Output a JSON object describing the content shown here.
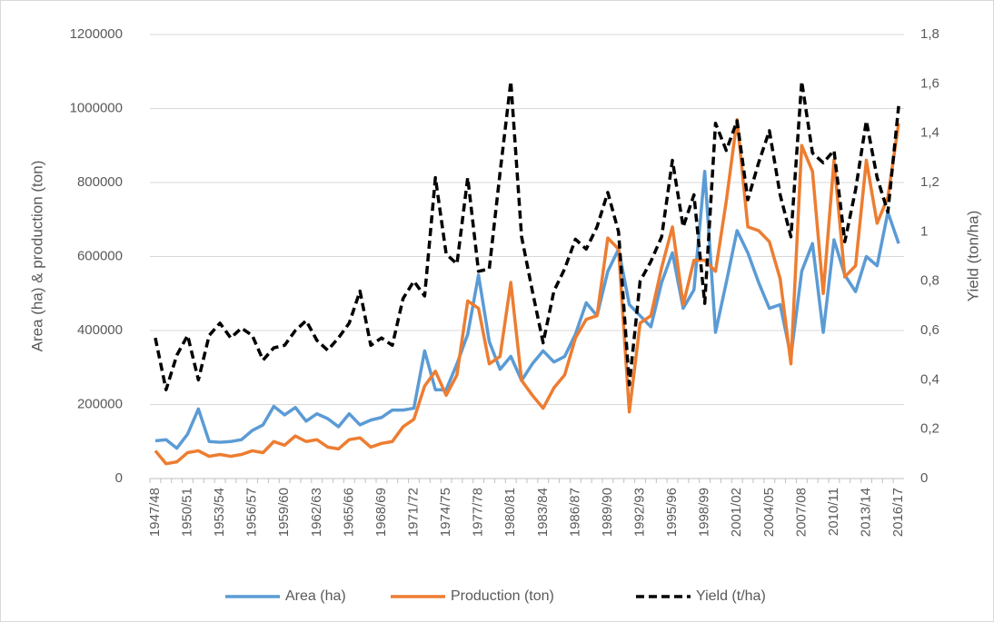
{
  "chart_data": {
    "type": "line",
    "y_label": "Area (ha) & production (ton)",
    "y2_label": "Yield (ton/ha)",
    "categories": [
      "1947/48",
      null,
      null,
      "1950/51",
      null,
      null,
      "1953/54",
      null,
      null,
      "1956/57",
      null,
      null,
      "1959/60",
      null,
      null,
      "1962/63",
      null,
      null,
      "1965/66",
      null,
      null,
      "1968/69",
      null,
      null,
      "1971/72",
      null,
      null,
      "1974/75",
      null,
      null,
      "1977/78",
      null,
      null,
      "1980/81",
      null,
      null,
      "1983/84",
      null,
      null,
      "1986/87",
      null,
      null,
      "1989/90",
      null,
      null,
      "1992/93",
      null,
      null,
      "1995/96",
      null,
      null,
      "1998/99",
      null,
      null,
      "2001/02",
      null,
      null,
      "2004/05",
      null,
      null,
      "2007/08",
      null,
      null,
      "2010/11",
      null,
      null,
      "2013/14",
      null,
      null,
      "2016/17"
    ],
    "series": [
      {
        "name": "Area (ha)",
        "color": "#5b9bd5",
        "dash": false,
        "axis": "y",
        "values": [
          102000,
          105000,
          82000,
          120000,
          188000,
          100000,
          98000,
          100000,
          105000,
          130000,
          145000,
          195000,
          172000,
          192000,
          155000,
          175000,
          162000,
          140000,
          175000,
          145000,
          158000,
          165000,
          185000,
          185000,
          190000,
          345000,
          240000,
          240000,
          310000,
          390000,
          550000,
          370000,
          295000,
          330000,
          265000,
          310000,
          345000,
          315000,
          330000,
          390000,
          475000,
          440000,
          560000,
          620000,
          470000,
          440000,
          410000,
          530000,
          610000,
          460000,
          510000,
          830000,
          395000,
          530000,
          670000,
          610000,
          530000,
          460000,
          470000,
          330000,
          560000,
          635000,
          395000,
          645000,
          550000,
          505000,
          600000,
          575000,
          720000,
          635000
        ]
      },
      {
        "name": "Production (ton)",
        "color": "#ed7d31",
        "dash": false,
        "axis": "y",
        "values": [
          75000,
          40000,
          45000,
          70000,
          75000,
          60000,
          65000,
          60000,
          65000,
          75000,
          70000,
          100000,
          90000,
          115000,
          100000,
          105000,
          85000,
          80000,
          105000,
          110000,
          85000,
          95000,
          100000,
          140000,
          160000,
          250000,
          290000,
          225000,
          280000,
          480000,
          460000,
          310000,
          330000,
          530000,
          265000,
          225000,
          190000,
          245000,
          280000,
          380000,
          430000,
          440000,
          650000,
          620000,
          180000,
          420000,
          440000,
          570000,
          680000,
          470000,
          590000,
          590000,
          560000,
          750000,
          970000,
          680000,
          670000,
          640000,
          540000,
          310000,
          900000,
          830000,
          500000,
          860000,
          545000,
          575000,
          860000,
          690000,
          760000,
          960000
        ]
      },
      {
        "name": "Yield (t/ha)",
        "color": "#000000",
        "dash": true,
        "axis": "y2",
        "values": [
          0.57,
          0.36,
          0.5,
          0.58,
          0.4,
          0.58,
          0.63,
          0.57,
          0.61,
          0.58,
          0.48,
          0.53,
          0.54,
          0.6,
          0.64,
          0.56,
          0.52,
          0.57,
          0.63,
          0.76,
          0.54,
          0.57,
          0.54,
          0.73,
          0.8,
          0.74,
          1.22,
          0.91,
          0.87,
          1.22,
          0.84,
          0.85,
          1.24,
          1.61,
          0.98,
          0.76,
          0.55,
          0.76,
          0.85,
          0.97,
          0.93,
          1.02,
          1.16,
          1.0,
          0.38,
          0.8,
          0.88,
          0.98,
          1.29,
          1.02,
          1.15,
          0.71,
          1.44,
          1.33,
          1.45,
          1.13,
          1.28,
          1.41,
          1.15,
          0.98,
          1.61,
          1.32,
          1.28,
          1.33,
          0.96,
          1.17,
          1.45,
          1.22,
          1.08,
          1.51
        ]
      }
    ],
    "ylim": [
      0,
      1200000
    ],
    "yticks": [
      0,
      200000,
      400000,
      600000,
      800000,
      1000000,
      1200000
    ],
    "y2lim": [
      0,
      1.8
    ],
    "y2ticks": [
      0,
      {
        "value": 0.2,
        "label": "0,2"
      },
      {
        "value": 0.4,
        "label": "0,4"
      },
      {
        "value": 0.6,
        "label": "0,6"
      },
      {
        "value": 0.8,
        "label": "0,8"
      },
      1,
      {
        "value": 1.2,
        "label": "1,2"
      },
      {
        "value": 1.4,
        "label": "1,4"
      },
      {
        "value": 1.6,
        "label": "1,6"
      },
      {
        "value": 1.8,
        "label": "1,8"
      }
    ],
    "grid": true,
    "legend": "bottom"
  }
}
